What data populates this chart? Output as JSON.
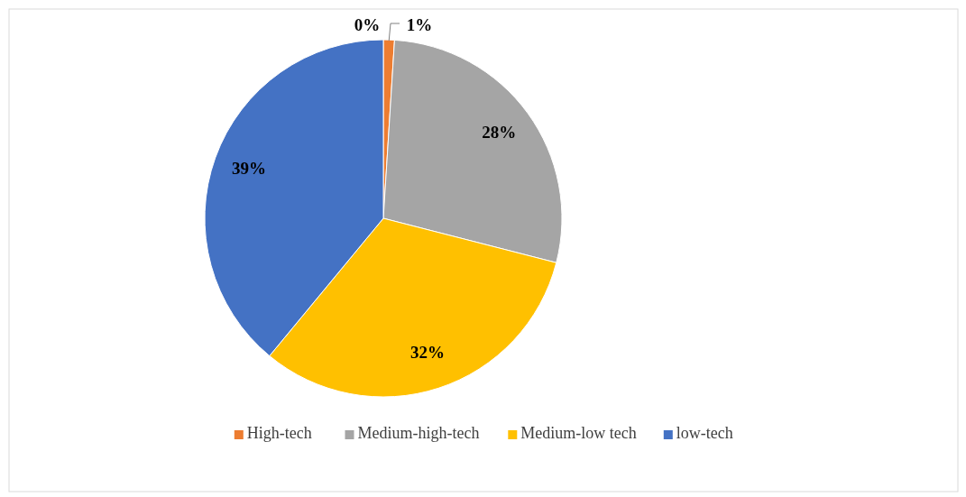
{
  "chart_data": {
    "type": "pie",
    "categories": [
      "High-tech",
      "Medium-high-tech",
      "Medium-low tech",
      "low-tech"
    ],
    "values": [
      1,
      28,
      32,
      39
    ],
    "colors": [
      "#ed7d31",
      "#a5a5a5",
      "#ffc000",
      "#4472c4"
    ],
    "value_labels": [
      "1%",
      "28%",
      "32%",
      "39%"
    ],
    "annotations": [
      "0%"
    ],
    "legend": "bottom"
  }
}
